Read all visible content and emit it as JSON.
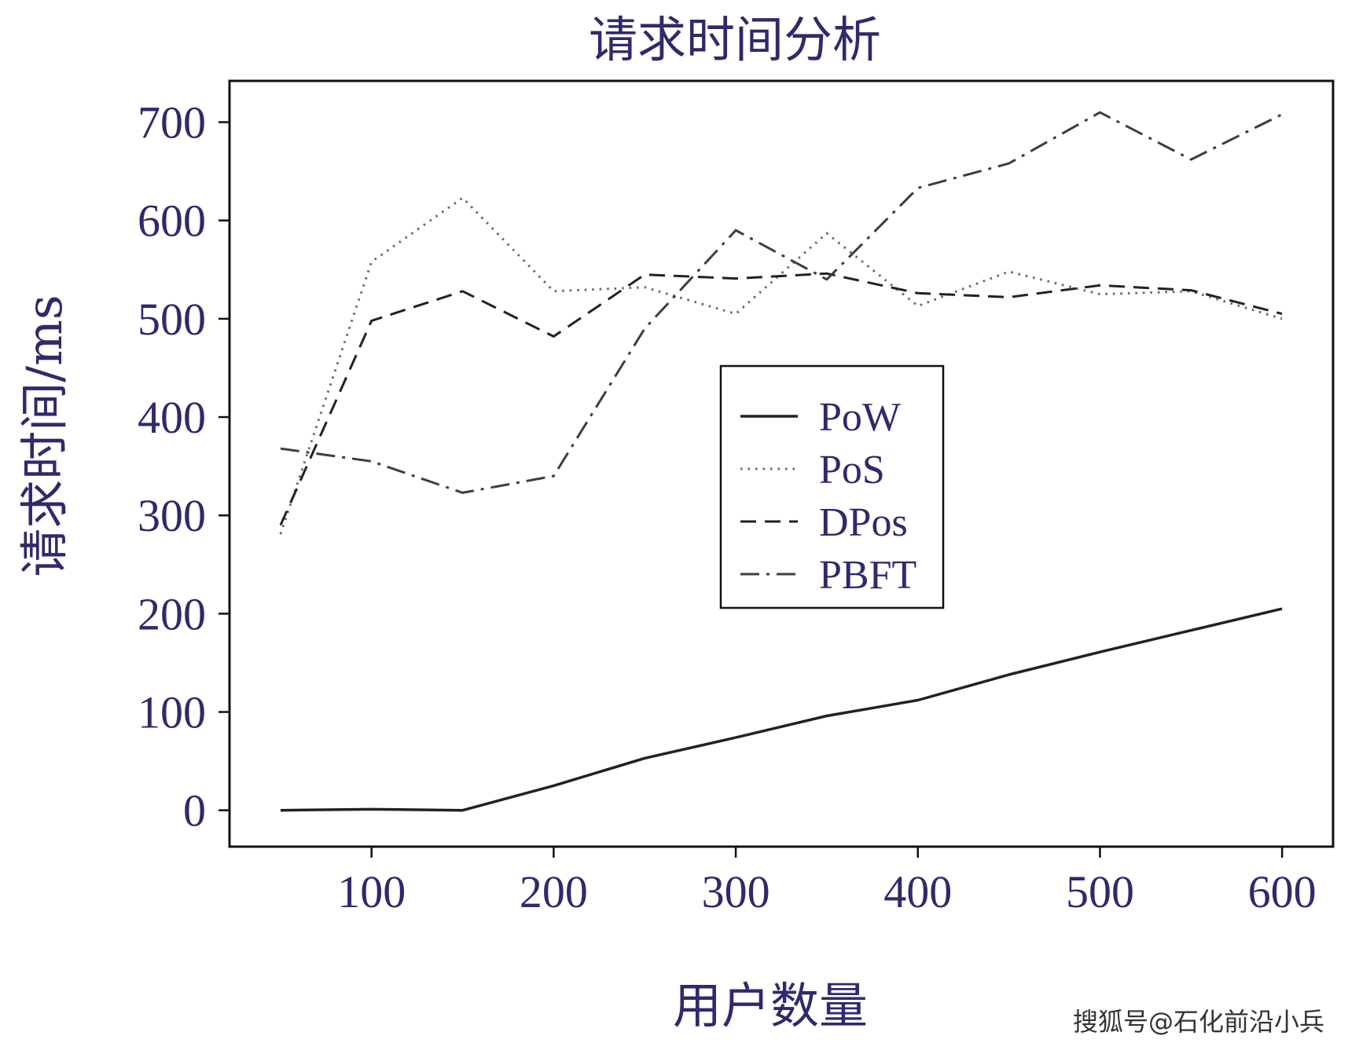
{
  "chart_data": {
    "type": "line",
    "title": "请求时间分析",
    "xlabel": "用户数量",
    "ylabel": "请求时间/ms",
    "xlim": [
      22,
      628
    ],
    "ylim": [
      -37,
      742
    ],
    "x_ticks": [
      100,
      200,
      300,
      400,
      500,
      600
    ],
    "y_ticks": [
      0,
      100,
      200,
      300,
      400,
      500,
      600,
      700
    ],
    "x_tick_labels": [
      "100",
      "200",
      "300",
      "400",
      "500",
      "600"
    ],
    "y_tick_labels": [
      "0",
      "100",
      "200",
      "300",
      "400",
      "500",
      "600",
      "700"
    ],
    "grid": false,
    "legend_position": "center-right",
    "series": [
      {
        "name": "PoW",
        "style": "solid",
        "color": "#222222",
        "x": [
          50,
          100,
          150,
          200,
          250,
          300,
          350,
          400,
          450,
          500,
          550,
          600
        ],
        "y": [
          0,
          1,
          0,
          25,
          53,
          74,
          96,
          112,
          138,
          161,
          183,
          205
        ]
      },
      {
        "name": "PoS",
        "style": "dotted",
        "color": "#666666",
        "x": [
          50,
          100,
          150,
          200,
          250,
          300,
          350,
          400,
          450,
          500,
          550,
          600
        ],
        "y": [
          281,
          558,
          623,
          528,
          532,
          505,
          587,
          513,
          548,
          525,
          528,
          500
        ]
      },
      {
        "name": "DPos",
        "style": "dashed",
        "color": "#222222",
        "x": [
          50,
          100,
          150,
          200,
          250,
          300,
          350,
          400,
          450,
          500,
          550,
          600
        ],
        "y": [
          290,
          498,
          528,
          482,
          545,
          541,
          546,
          526,
          522,
          534,
          529,
          505
        ]
      },
      {
        "name": "PBFT",
        "style": "dashdot",
        "color": "#3a3f3c",
        "x": [
          50,
          100,
          150,
          200,
          250,
          300,
          350,
          400,
          450,
          500,
          550,
          600
        ],
        "y": [
          368,
          355,
          323,
          340,
          490,
          590,
          540,
          633,
          658,
          710,
          662,
          708
        ]
      }
    ]
  },
  "watermark": "搜狐号@石化前沿小兵"
}
